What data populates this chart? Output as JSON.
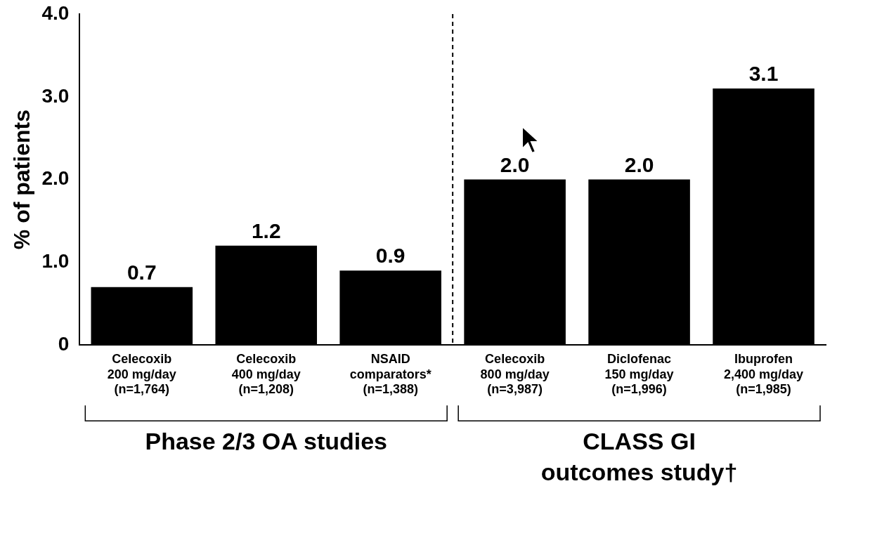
{
  "chart_data": {
    "type": "bar",
    "ylabel": "% of patients",
    "categories": [
      "Celecoxib\n200 mg/day\n(n=1,764)",
      "Celecoxib\n400 mg/day\n(n=1,208)",
      "NSAID\ncomparators*\n(n=1,388)",
      "Celecoxib\n800 mg/day\n(n=3,987)",
      "Diclofenac\n150 mg/day\n(n=1,996)",
      "Ibuprofen\n2,400 mg/day\n(n=1,985)"
    ],
    "values": [
      0.7,
      1.2,
      0.9,
      2.0,
      2.0,
      3.1
    ],
    "color": "#000000",
    "ylim": [
      0,
      4
    ],
    "yticks": [
      0,
      {
        "value": 1,
        "label": "1.0"
      },
      {
        "value": 2,
        "label": "2.0"
      },
      {
        "value": 3,
        "label": "3.0"
      },
      {
        "value": 4,
        "label": "4.0"
      }
    ],
    "value_labels": [
      "0.7",
      "1.2",
      "0.9",
      "2.0",
      "2.0",
      "3.1"
    ],
    "grid": false,
    "legend": false,
    "annotations": [
      "Phase 2/3 OA studies",
      "CLASS GI\noutcomes study†"
    ]
  }
}
